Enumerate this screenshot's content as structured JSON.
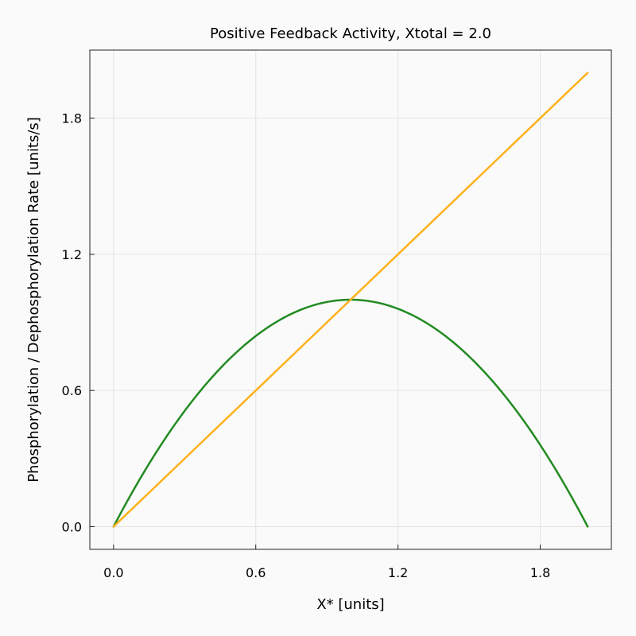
{
  "chart_data": {
    "type": "line",
    "title": "Positive Feedback Activity, Xtotal = 2.0",
    "xlabel": "X* [units]",
    "ylabel": "Phosphorylation / Dephosphorylation Rate [units/s]",
    "xlim": [
      -0.1,
      2.1
    ],
    "ylim": [
      -0.1,
      2.1
    ],
    "xticks": [
      0.0,
      0.6,
      1.2,
      1.8
    ],
    "xtick_labels": [
      "0.0",
      "0.6",
      "1.2",
      "1.8"
    ],
    "yticks": [
      0.0,
      0.6,
      1.2,
      1.8
    ],
    "ytick_labels": [
      "0.0",
      "0.6",
      "1.2",
      "1.8"
    ],
    "grid": true,
    "series": [
      {
        "color": "#228b22",
        "x": [
          0.0,
          0.1,
          0.2,
          0.3,
          0.4,
          0.5,
          0.6,
          0.7,
          0.8,
          0.9,
          1.0,
          1.1,
          1.2,
          1.3,
          1.4,
          1.5,
          1.6,
          1.7,
          1.8,
          1.9,
          2.0
        ],
        "y": [
          0.0,
          0.19,
          0.36,
          0.51,
          0.64,
          0.75,
          0.84,
          0.91,
          0.96,
          0.99,
          1.0,
          0.99,
          0.96,
          0.91,
          0.84,
          0.75,
          0.64,
          0.51,
          0.36,
          0.19,
          0.0
        ]
      },
      {
        "color": "#ffb11b",
        "x": [
          0.0,
          2.0
        ],
        "y": [
          0.0,
          2.0
        ]
      }
    ]
  }
}
